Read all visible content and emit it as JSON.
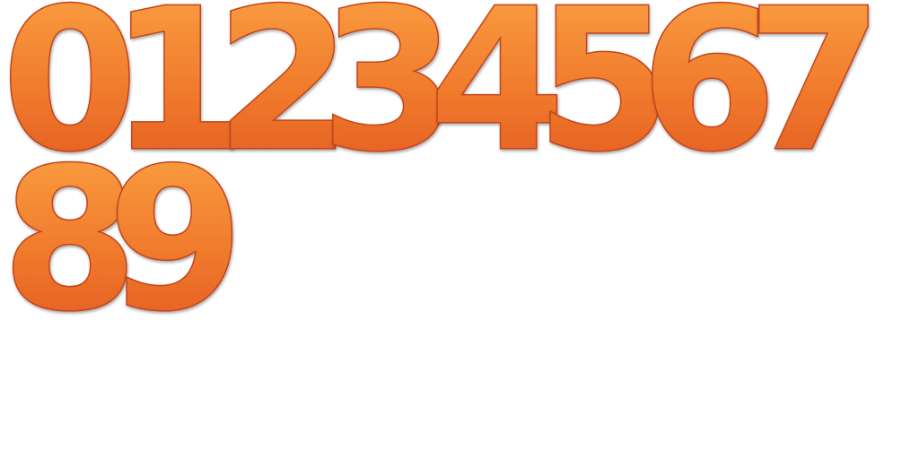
{
  "rows": [
    {
      "digits": [
        "0",
        "1",
        "2",
        "3",
        "4",
        "5",
        "6",
        "7"
      ]
    },
    {
      "digits": [
        "8",
        "9"
      ]
    }
  ],
  "colors": {
    "fill_top": "#fb9a3a",
    "fill_bottom": "#e25a22",
    "outline": "#c2441c",
    "background": "#ffffff"
  }
}
